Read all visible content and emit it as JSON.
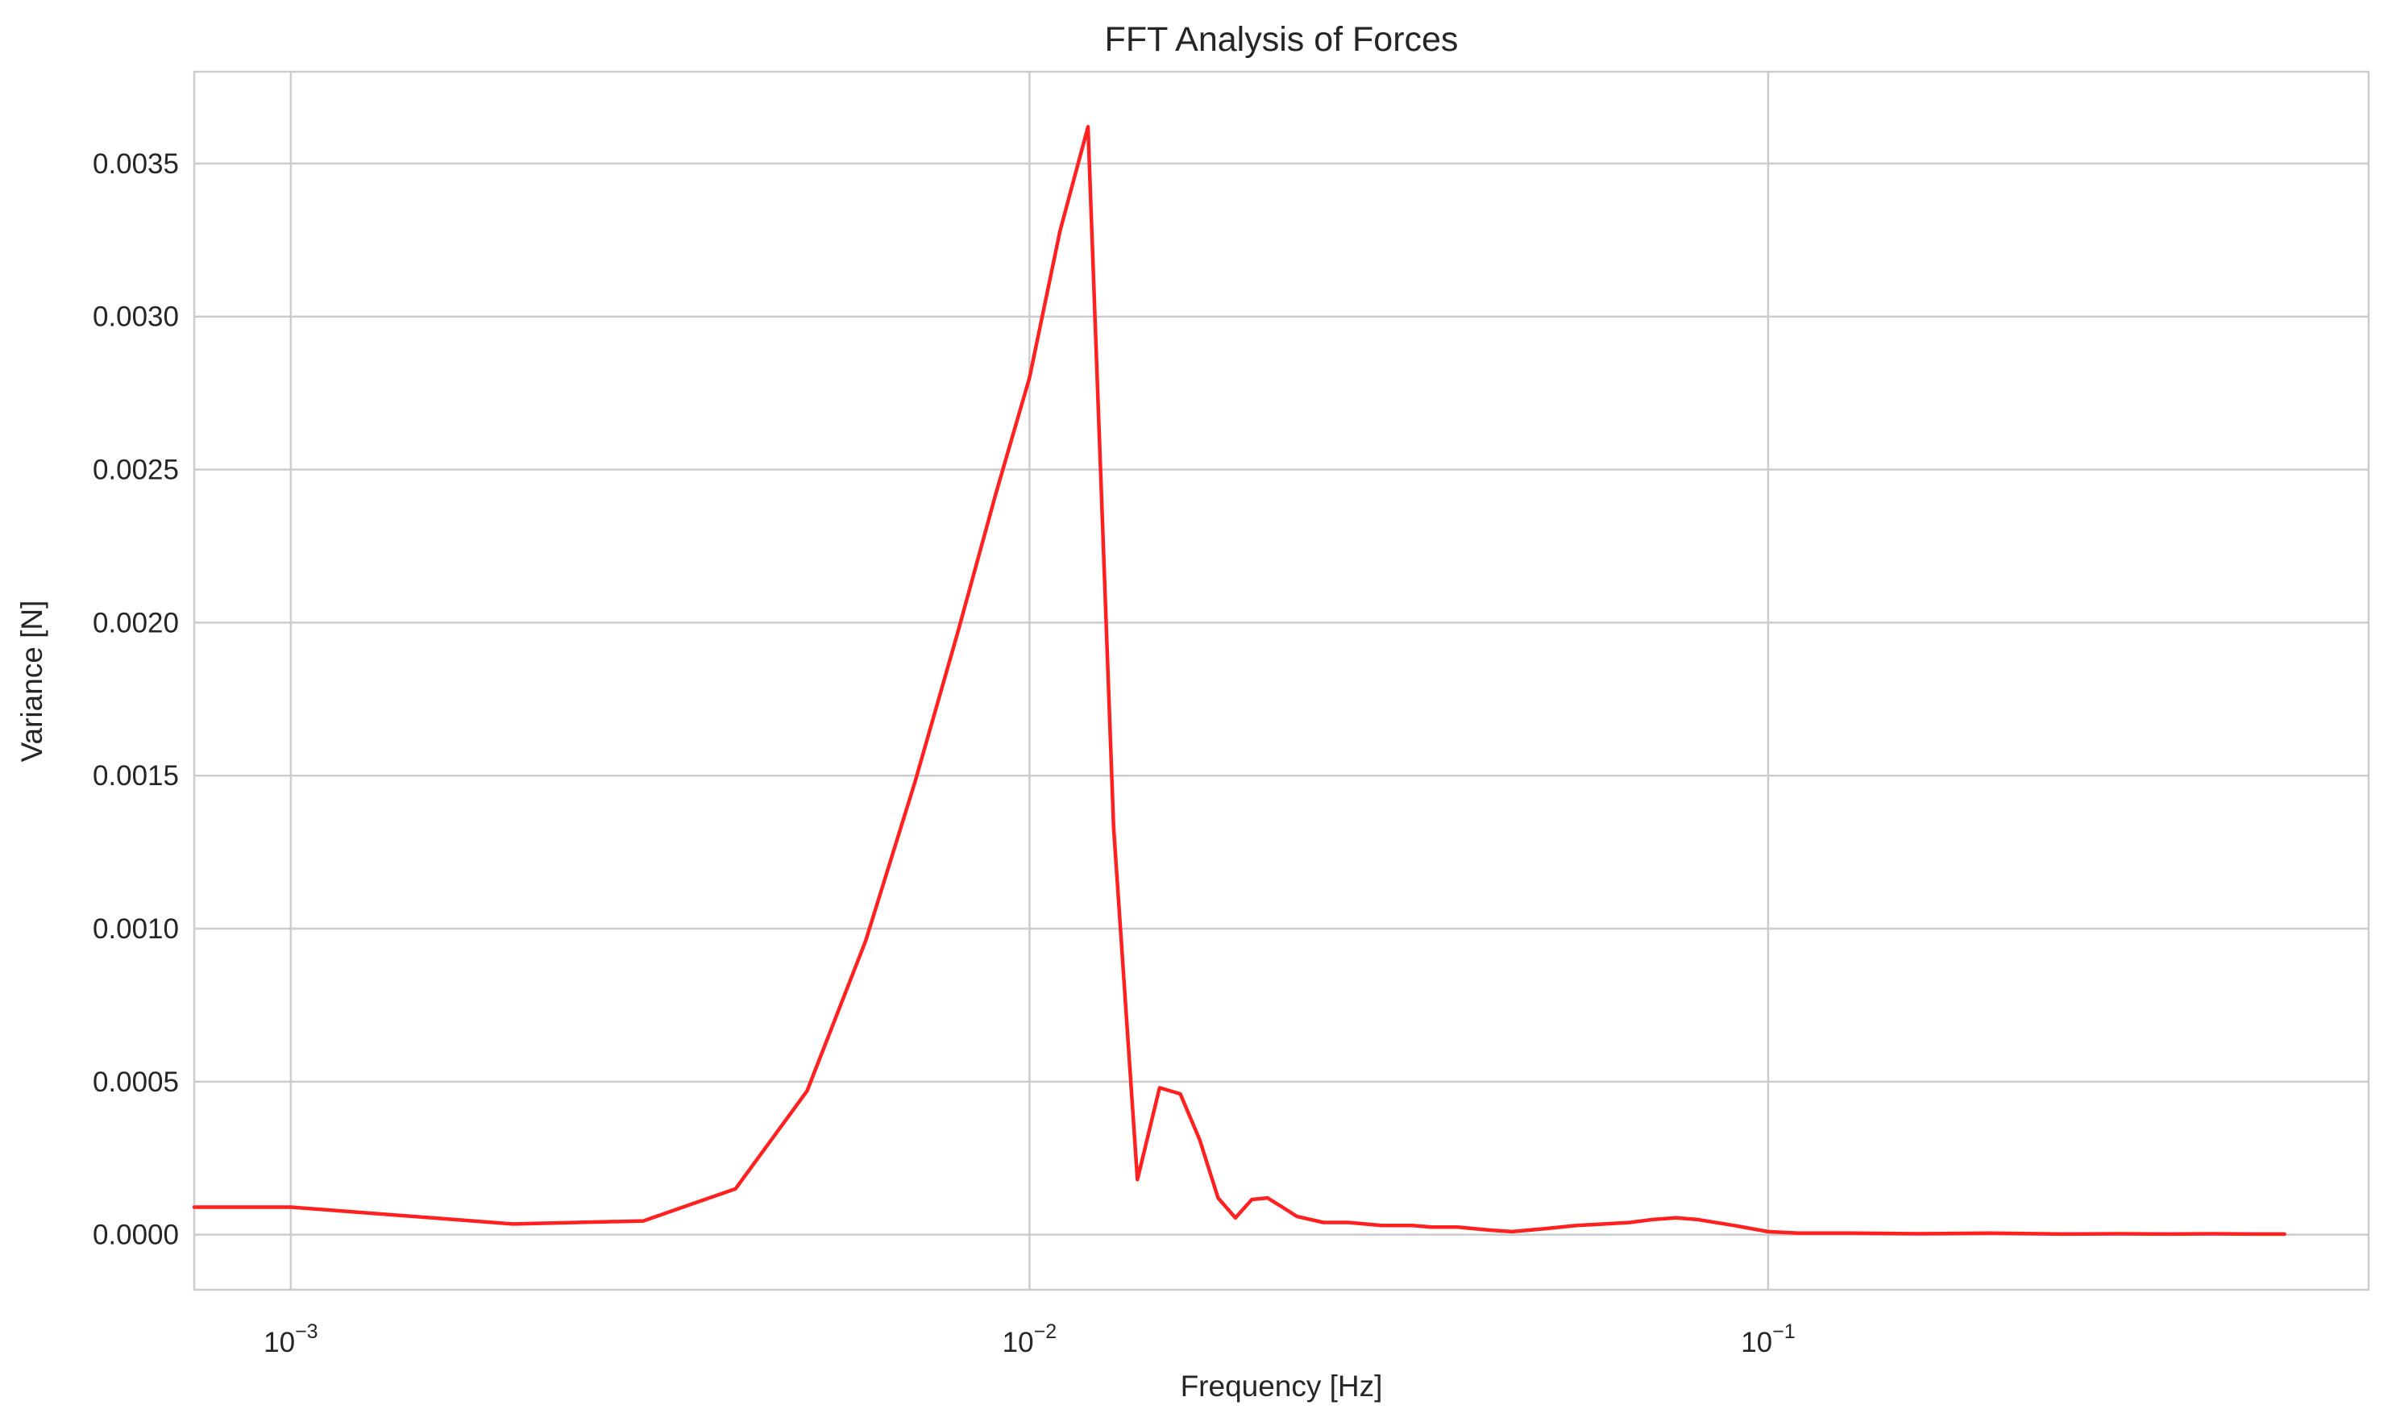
{
  "chart_data": {
    "type": "line",
    "title": "FFT Analysis of Forces",
    "xlabel": "Frequency [Hz]",
    "ylabel": "Variance [N]",
    "x_scale": "log",
    "xlim": [
      0.00074,
      0.65
    ],
    "ylim": [
      -0.00018,
      0.0038
    ],
    "grid": true,
    "legend": "none",
    "x_ticks": [
      {
        "value": 0.001,
        "base": "10",
        "exp": "−3"
      },
      {
        "value": 0.01,
        "base": "10",
        "exp": "−2"
      },
      {
        "value": 0.1,
        "base": "10",
        "exp": "−1"
      }
    ],
    "y_ticks": [
      {
        "value": 0.0,
        "label": "0.0000"
      },
      {
        "value": 0.0005,
        "label": "0.0005"
      },
      {
        "value": 0.001,
        "label": "0.0010"
      },
      {
        "value": 0.0015,
        "label": "0.0015"
      },
      {
        "value": 0.002,
        "label": "0.0020"
      },
      {
        "value": 0.0025,
        "label": "0.0025"
      },
      {
        "value": 0.003,
        "label": "0.0030"
      },
      {
        "value": 0.0035,
        "label": "0.0035"
      }
    ],
    "series": [
      {
        "color": "#ff2020",
        "x": [
          0.00074,
          0.001,
          0.002,
          0.003,
          0.004,
          0.005,
          0.006,
          0.007,
          0.008,
          0.009,
          0.01,
          0.011,
          0.012,
          0.013,
          0.014,
          0.015,
          0.016,
          0.017,
          0.018,
          0.019,
          0.02,
          0.021,
          0.022,
          0.023,
          0.025,
          0.027,
          0.03,
          0.033,
          0.035,
          0.038,
          0.042,
          0.045,
          0.05,
          0.055,
          0.06,
          0.065,
          0.07,
          0.075,
          0.08,
          0.09,
          0.1,
          0.11,
          0.13,
          0.16,
          0.2,
          0.25,
          0.3,
          0.35,
          0.4,
          0.45,
          0.5
        ],
        "y": [
          9e-05,
          9e-05,
          3.5e-05,
          4.5e-05,
          0.00015,
          0.00047,
          0.00096,
          0.00148,
          0.00197,
          0.00242,
          0.0028,
          0.00328,
          0.00362,
          0.00133,
          0.00018,
          0.00048,
          0.00046,
          0.00031,
          0.00012,
          5.5e-05,
          0.000115,
          0.00012,
          9e-05,
          6e-05,
          4e-05,
          4e-05,
          3e-05,
          3e-05,
          2.5e-05,
          2.5e-05,
          1.5e-05,
          1e-05,
          2e-05,
          3e-05,
          3.5e-05,
          4e-05,
          5e-05,
          5.5e-05,
          5e-05,
          3e-05,
          1e-05,
          5e-06,
          5e-06,
          3e-06,
          5e-06,
          2e-06,
          3e-06,
          2e-06,
          3e-06,
          2e-06,
          2e-06
        ]
      }
    ]
  }
}
